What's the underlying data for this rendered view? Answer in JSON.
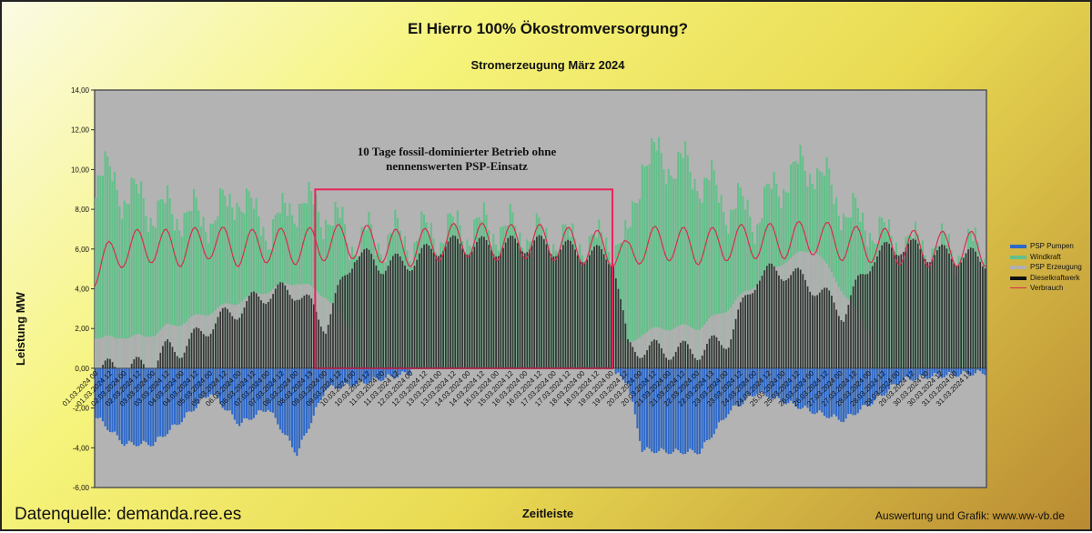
{
  "chart_data": {
    "type": "bar",
    "title": "El Hierro 100% Ökostromversorgung?",
    "subtitle": "Stromerzeugung März 2024",
    "xlabel": "Zeitleiste",
    "ylabel": "Leistung MW",
    "ylim": [
      -6,
      14
    ],
    "y_ticks": [
      "14,00",
      "12,00",
      "10,00",
      "8,00",
      "6,00",
      "4,00",
      "2,00",
      "0,00",
      "-2,00",
      "-4,00",
      "-6,00"
    ],
    "x_ticks": [
      "01.03.2024 00",
      "01.03.2024 12",
      "02.03.2024 00",
      "02.03.2024 12",
      "03.03.2024 00",
      "03.03.2024 12",
      "04.03.2024 00",
      "04.03.2024 12",
      "05.03.2024 00",
      "05.03.2024 12",
      "06.03.2024 00",
      "06.03.2024 12",
      "07.03.2024 00",
      "07.03.2024 12",
      "08.03.2024 00",
      "08.03.2024 13",
      "09.03.2024 00",
      "09.03.2024 12",
      "10.03.2024 00",
      "10.03.2024 12",
      "11.03.2024 00",
      "11.03.2024 12",
      "12.03.2024 00",
      "12.03.2024 12",
      "13.03.2024 00",
      "13.03.2024 12",
      "14.03.2024 00",
      "14.03.2024 12",
      "15.03.2024 00",
      "15.03.2024 12",
      "16.03.2024 00",
      "16.03.2024 12",
      "17.03.2024 00",
      "17.03.2024 12",
      "18.03.2024 00",
      "18.03.2024 12",
      "19.03.2024 00",
      "19.03.2024 12",
      "20.03.2024 00",
      "20.03.2024 12",
      "21.03.2024 00",
      "21.03.2024 12",
      "22.03.2024 00",
      "22.03.2024 13",
      "23.03.2024 00",
      "23.03.2024 12",
      "24.03.2024 00",
      "24.03.2024 12",
      "25.03.2024 00",
      "25.03.2024 12",
      "26.03.2024 00",
      "26.03.2024 12",
      "27.03.2024 00",
      "27.03.2024 12",
      "28.03.2024 00",
      "28.03.2024 12",
      "29.03.2024 00",
      "29.03.2024 12",
      "30.03.2024 00",
      "30.03.2024 12",
      "31.03.2024 00",
      "31.03.2024 13"
    ],
    "x_unit": "hours since 01.03.2024 00",
    "x_range": [
      0,
      744
    ],
    "series": [
      {
        "name": "PSP Pumpen",
        "type": "bar",
        "color": "#2e69c8",
        "points": [
          [
            0,
            -2.2
          ],
          [
            24,
            -3.6
          ],
          [
            48,
            -3.6
          ],
          [
            72,
            -2.4
          ],
          [
            96,
            -1.0
          ],
          [
            120,
            -2.6
          ],
          [
            144,
            -1.8
          ],
          [
            168,
            -4.1
          ],
          [
            192,
            -0.8
          ],
          [
            216,
            -0.6
          ],
          [
            240,
            -0.3
          ],
          [
            264,
            0
          ],
          [
            360,
            0
          ],
          [
            420,
            0
          ],
          [
            432,
            0
          ],
          [
            444,
            -0.5
          ],
          [
            456,
            -3.9
          ],
          [
            480,
            -4.0
          ],
          [
            504,
            -4.0
          ],
          [
            528,
            -2.0
          ],
          [
            552,
            -1.0
          ],
          [
            576,
            -1.5
          ],
          [
            600,
            -2.0
          ],
          [
            624,
            -2.4
          ],
          [
            648,
            -1.5
          ],
          [
            672,
            -0.4
          ],
          [
            696,
            -0.2
          ],
          [
            744,
            0
          ]
        ]
      },
      {
        "name": "Windkraft",
        "type": "area",
        "color": "#63c08a",
        "points": [
          [
            0,
            10.0
          ],
          [
            24,
            8.9
          ],
          [
            48,
            8.0
          ],
          [
            72,
            7.8
          ],
          [
            96,
            7.5
          ],
          [
            120,
            8.7
          ],
          [
            144,
            6.9
          ],
          [
            168,
            8.4
          ],
          [
            192,
            7.8
          ],
          [
            216,
            6.4
          ],
          [
            240,
            6.5
          ],
          [
            264,
            6.5
          ],
          [
            288,
            6.8
          ],
          [
            312,
            7.0
          ],
          [
            336,
            7.1
          ],
          [
            360,
            6.7
          ],
          [
            384,
            6.5
          ],
          [
            408,
            6.3
          ],
          [
            432,
            6.3
          ],
          [
            444,
            6.2
          ],
          [
            456,
            10.6
          ],
          [
            480,
            10.4
          ],
          [
            504,
            9.6
          ],
          [
            528,
            8.2
          ],
          [
            552,
            7.7
          ],
          [
            576,
            9.7
          ],
          [
            600,
            10.2
          ],
          [
            624,
            8.0
          ],
          [
            648,
            7.0
          ],
          [
            672,
            6.3
          ],
          [
            696,
            6.1
          ],
          [
            744,
            5.9
          ]
        ]
      },
      {
        "name": "PSP Erzeugung",
        "type": "area",
        "color": "#b0b0b0",
        "points": [
          [
            0,
            1.5
          ],
          [
            24,
            1.5
          ],
          [
            48,
            1.6
          ],
          [
            72,
            2.0
          ],
          [
            96,
            2.2
          ],
          [
            120,
            2.5
          ],
          [
            144,
            2.8
          ],
          [
            168,
            3.2
          ],
          [
            192,
            3.0
          ],
          [
            216,
            0
          ],
          [
            240,
            0
          ],
          [
            264,
            0
          ],
          [
            288,
            0
          ],
          [
            312,
            0
          ],
          [
            336,
            0
          ],
          [
            360,
            0
          ],
          [
            384,
            0
          ],
          [
            408,
            0
          ],
          [
            432,
            0
          ],
          [
            444,
            0.8
          ],
          [
            456,
            1.5
          ],
          [
            480,
            1.8
          ],
          [
            504,
            1.8
          ],
          [
            528,
            2.6
          ],
          [
            552,
            2.9
          ],
          [
            576,
            4.0
          ],
          [
            600,
            4.8
          ],
          [
            624,
            3.0
          ],
          [
            648,
            0
          ],
          [
            672,
            0
          ],
          [
            696,
            0
          ],
          [
            744,
            0
          ]
        ]
      },
      {
        "name": "Dieselkraftwerk",
        "type": "bar",
        "color": "#333333",
        "points": [
          [
            0,
            0
          ],
          [
            24,
            0
          ],
          [
            48,
            0.2
          ],
          [
            60,
            1.0
          ],
          [
            72,
            1.0
          ],
          [
            96,
            2.2
          ],
          [
            120,
            3.0
          ],
          [
            144,
            3.8
          ],
          [
            168,
            3.9
          ],
          [
            192,
            2.2
          ],
          [
            216,
            5.8
          ],
          [
            240,
            5.2
          ],
          [
            264,
            5.4
          ],
          [
            288,
            6.2
          ],
          [
            312,
            6.2
          ],
          [
            336,
            6.1
          ],
          [
            360,
            6.3
          ],
          [
            384,
            6.1
          ],
          [
            408,
            5.8
          ],
          [
            432,
            5.6
          ],
          [
            444,
            1.0
          ],
          [
            456,
            1.0
          ],
          [
            480,
            0.9
          ],
          [
            504,
            0.9
          ],
          [
            528,
            1.5
          ],
          [
            552,
            4.7
          ],
          [
            576,
            4.9
          ],
          [
            600,
            4.1
          ],
          [
            624,
            2.8
          ],
          [
            648,
            5.6
          ],
          [
            672,
            6.2
          ],
          [
            696,
            5.8
          ],
          [
            744,
            5.5
          ]
        ]
      },
      {
        "name": "Verbrauch",
        "type": "line",
        "color": "#d82c4c",
        "points": [
          [
            0,
            5.0
          ],
          [
            24,
            6.0
          ],
          [
            48,
            6.2
          ],
          [
            72,
            6.0
          ],
          [
            96,
            6.4
          ],
          [
            120,
            6.0
          ],
          [
            144,
            6.2
          ],
          [
            168,
            6.1
          ],
          [
            192,
            6.3
          ],
          [
            216,
            6.4
          ],
          [
            240,
            6.2
          ],
          [
            264,
            6.0
          ],
          [
            288,
            6.3
          ],
          [
            312,
            6.5
          ],
          [
            336,
            6.3
          ],
          [
            360,
            6.4
          ],
          [
            384,
            6.3
          ],
          [
            408,
            6.1
          ],
          [
            432,
            6.0
          ],
          [
            444,
            5.5
          ],
          [
            456,
            6.2
          ],
          [
            480,
            6.3
          ],
          [
            504,
            6.1
          ],
          [
            528,
            6.3
          ],
          [
            552,
            6.4
          ],
          [
            576,
            6.4
          ],
          [
            600,
            6.6
          ],
          [
            624,
            6.3
          ],
          [
            648,
            6.2
          ],
          [
            672,
            6.1
          ],
          [
            696,
            6.0
          ],
          [
            744,
            6.0
          ]
        ]
      }
    ],
    "annotation_box": {
      "x_start_hours": 184,
      "x_end_hours": 432,
      "y_top": 9.0,
      "y_bottom": 0.0
    },
    "legend_placement": "right",
    "grid": false,
    "colors": {
      "axes_fill": "#b3b3b3",
      "highlight_box": "#e8245b"
    }
  },
  "annotation_text": "10 Tage fossil-dominierter Betrieb ohne nennenswerten PSP-Einsatz",
  "footer": {
    "source": "Datenquelle: demanda.ree.es",
    "credit": "Auswertung und Grafik: www.ww-vb.de"
  }
}
